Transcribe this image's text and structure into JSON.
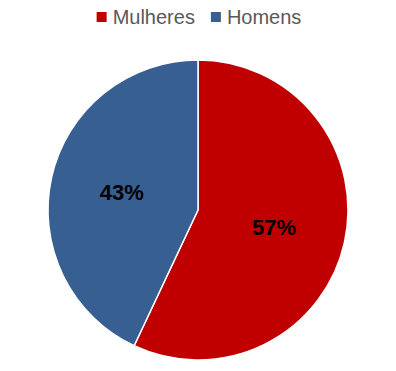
{
  "chart_data": {
    "type": "pie",
    "categories": [
      "Mulheres",
      "Homens"
    ],
    "values": [
      57,
      43
    ],
    "value_labels": [
      "57%",
      "43%"
    ],
    "colors": [
      "#c00000",
      "#375f92"
    ],
    "legend": "top",
    "data_labels": true
  }
}
